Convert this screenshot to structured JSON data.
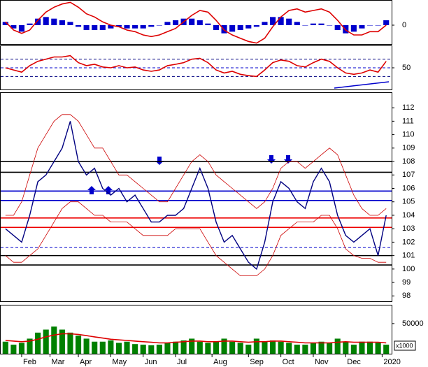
{
  "chart_data": [
    {
      "type": "macd",
      "ylim": [
        -1.2,
        1.5
      ],
      "yticks": [
        0
      ],
      "series": [
        {
          "name": "MACD histogram",
          "type": "bar",
          "color": "#0000cc",
          "values": [
            0.2,
            -0.2,
            -0.4,
            0.1,
            0.4,
            0.5,
            0.4,
            0.3,
            0.2,
            -0.1,
            -0.3,
            -0.3,
            -0.3,
            -0.2,
            -0.1,
            -0.2,
            -0.2,
            -0.2,
            -0.1,
            0,
            0.2,
            0.3,
            0.4,
            0.4,
            0.3,
            0.1,
            -0.3,
            -0.5,
            -0.4,
            -0.3,
            -0.2,
            -0.1,
            0.2,
            0.5,
            0.5,
            0.4,
            0.2,
            0,
            0.1,
            0.1,
            0,
            -0.3,
            -0.5,
            -0.4,
            -0.2,
            0,
            0,
            0.3
          ]
        },
        {
          "name": "MACD",
          "type": "line",
          "color": "#dd0000",
          "values": [
            0.2,
            -0.3,
            -0.5,
            -0.3,
            0.3,
            0.8,
            1.1,
            1.3,
            1.4,
            1.1,
            0.7,
            0.5,
            0.2,
            0,
            -0.1,
            -0.3,
            -0.4,
            -0.6,
            -0.7,
            -0.6,
            -0.4,
            -0.2,
            0.2,
            0.6,
            0.9,
            0.8,
            0.3,
            -0.3,
            -0.6,
            -0.8,
            -1.0,
            -1.1,
            -0.8,
            -0.1,
            0.5,
            0.9,
            1.0,
            0.8,
            0.9,
            1.0,
            0.8,
            0.3,
            -0.3,
            -0.6,
            -0.6,
            -0.4,
            -0.4,
            0
          ]
        }
      ]
    },
    {
      "type": "rsi",
      "ylim": [
        0,
        100
      ],
      "yticks": [
        50
      ],
      "levels": [
        {
          "value": 30,
          "color": "#000080",
          "dashed": true
        },
        {
          "value": 50,
          "color": "#0000cc",
          "dashed": true
        },
        {
          "value": 70,
          "color": "#000080",
          "dashed": true
        }
      ],
      "series": [
        {
          "name": "RSI",
          "type": "line",
          "color": "#dd0000",
          "values": [
            50,
            45,
            40,
            55,
            65,
            70,
            75,
            75,
            78,
            62,
            55,
            58,
            52,
            50,
            55,
            50,
            52,
            45,
            42,
            45,
            55,
            58,
            62,
            70,
            72,
            62,
            45,
            38,
            42,
            35,
            32,
            30,
            45,
            62,
            68,
            65,
            55,
            52,
            62,
            70,
            65,
            50,
            38,
            35,
            38,
            45,
            40,
            65
          ]
        }
      ]
    },
    {
      "type": "price",
      "ylim": [
        97.6,
        113.1
      ],
      "yticks": [
        98,
        99,
        100,
        101,
        102,
        103,
        104,
        105,
        106,
        107,
        108,
        109,
        110,
        111,
        112
      ],
      "levels": [
        {
          "value": 108,
          "color": "#000000",
          "dashed": false
        },
        {
          "value": 107.2,
          "color": "#000000",
          "dashed": false
        },
        {
          "value": 105.8,
          "color": "#0000cc",
          "dashed": false
        },
        {
          "value": 105.1,
          "color": "#0000cc",
          "dashed": false
        },
        {
          "value": 103.8,
          "color": "#ee0000",
          "dashed": false
        },
        {
          "value": 103.1,
          "color": "#ee0000",
          "dashed": false
        },
        {
          "value": 101.6,
          "color": "#0000cc",
          "dashed": true
        },
        {
          "value": 101,
          "color": "#000000",
          "dashed": false
        },
        {
          "value": 100.3,
          "color": "#000000",
          "dashed": false
        }
      ],
      "series": [
        {
          "name": "Upper band",
          "type": "line",
          "color": "#cc0000",
          "values": [
            104,
            104,
            105,
            107,
            109,
            110,
            111,
            111.5,
            111.5,
            111,
            110,
            109,
            109,
            108,
            107,
            107,
            106.5,
            106,
            105.5,
            105,
            105,
            106,
            107,
            108,
            108.5,
            108,
            107,
            106.5,
            106,
            105.5,
            105,
            104.5,
            105,
            106,
            107.5,
            108,
            108,
            107.5,
            108,
            108.5,
            109,
            108.5,
            107,
            105.5,
            104.5,
            104,
            104,
            104.5
          ]
        },
        {
          "name": "Lower band",
          "type": "line",
          "color": "#cc0000",
          "values": [
            101,
            100.5,
            100.5,
            101,
            101.5,
            102.5,
            103.5,
            104.5,
            105,
            105,
            104.5,
            104,
            104,
            103.5,
            103.5,
            103.5,
            103,
            102.5,
            102.5,
            102.5,
            102.5,
            103,
            103,
            103,
            103,
            102,
            101,
            100.5,
            100,
            99.5,
            99.5,
            99.5,
            100,
            101,
            102.5,
            103,
            103.5,
            103.5,
            103.5,
            104,
            104,
            103,
            101.5,
            101,
            100.8,
            100.8,
            100.5,
            100.5
          ]
        },
        {
          "name": "Close",
          "type": "line",
          "color": "#000080",
          "values": [
            103,
            102.5,
            102,
            104,
            106.5,
            107,
            108,
            109,
            111,
            108,
            107,
            107.5,
            106,
            105.5,
            106,
            105,
            105.5,
            104.5,
            103.5,
            103.5,
            104,
            104,
            104.5,
            106,
            107.5,
            106,
            103.5,
            102,
            102.5,
            101.5,
            100.5,
            100,
            102,
            105,
            106.5,
            106,
            105,
            104.5,
            106.5,
            107.5,
            106.5,
            104,
            102.5,
            102,
            102.5,
            103,
            101,
            104
          ]
        }
      ]
    },
    {
      "type": "volume",
      "ylim": [
        0,
        80000
      ],
      "yticks": [
        50000
      ],
      "unit": "x1000",
      "xticks": [
        {
          "value": 2,
          "label": "Feb"
        },
        {
          "value": 5.5,
          "label": "Mar"
        },
        {
          "value": 9,
          "label": "Apr"
        },
        {
          "value": 13,
          "label": "May"
        },
        {
          "value": 17,
          "label": "Jun"
        },
        {
          "value": 21,
          "label": "Jul"
        },
        {
          "value": 25.5,
          "label": "Aug"
        },
        {
          "value": 30,
          "label": "Sep"
        },
        {
          "value": 34,
          "label": "Oct"
        },
        {
          "value": 38,
          "label": "Nov"
        },
        {
          "value": 42,
          "label": "Dec"
        },
        {
          "value": 46.5,
          "label": "2020"
        }
      ],
      "series": [
        {
          "name": "Volume",
          "type": "bar",
          "color": "#008000",
          "values": [
            20000,
            15000,
            18000,
            25000,
            35000,
            40000,
            45000,
            40000,
            35000,
            30000,
            25000,
            20000,
            20000,
            22000,
            18000,
            20000,
            16000,
            15000,
            14000,
            15000,
            18000,
            20000,
            22000,
            25000,
            20000,
            18000,
            20000,
            25000,
            20000,
            18000,
            15000,
            25000,
            20000,
            22000,
            20000,
            18000,
            15000,
            15000,
            18000,
            20000,
            18000,
            25000,
            20000,
            15000,
            20000,
            20000,
            18000,
            15000
          ]
        },
        {
          "name": "Volume MA",
          "type": "line",
          "color": "#dd0000",
          "values": [
            22000,
            21000,
            20000,
            21000,
            24000,
            28000,
            31000,
            33000,
            33000,
            32000,
            30000,
            28000,
            26000,
            24000,
            23000,
            22000,
            21000,
            20000,
            19000,
            18000,
            18000,
            19000,
            20000,
            21000,
            21000,
            20000,
            20000,
            21000,
            21000,
            20000,
            19000,
            20000,
            20000,
            21000,
            21000,
            20000,
            19000,
            18000,
            18000,
            18000,
            18000,
            19000,
            20000,
            19000,
            19000,
            19000,
            19000,
            18000
          ]
        }
      ]
    }
  ]
}
